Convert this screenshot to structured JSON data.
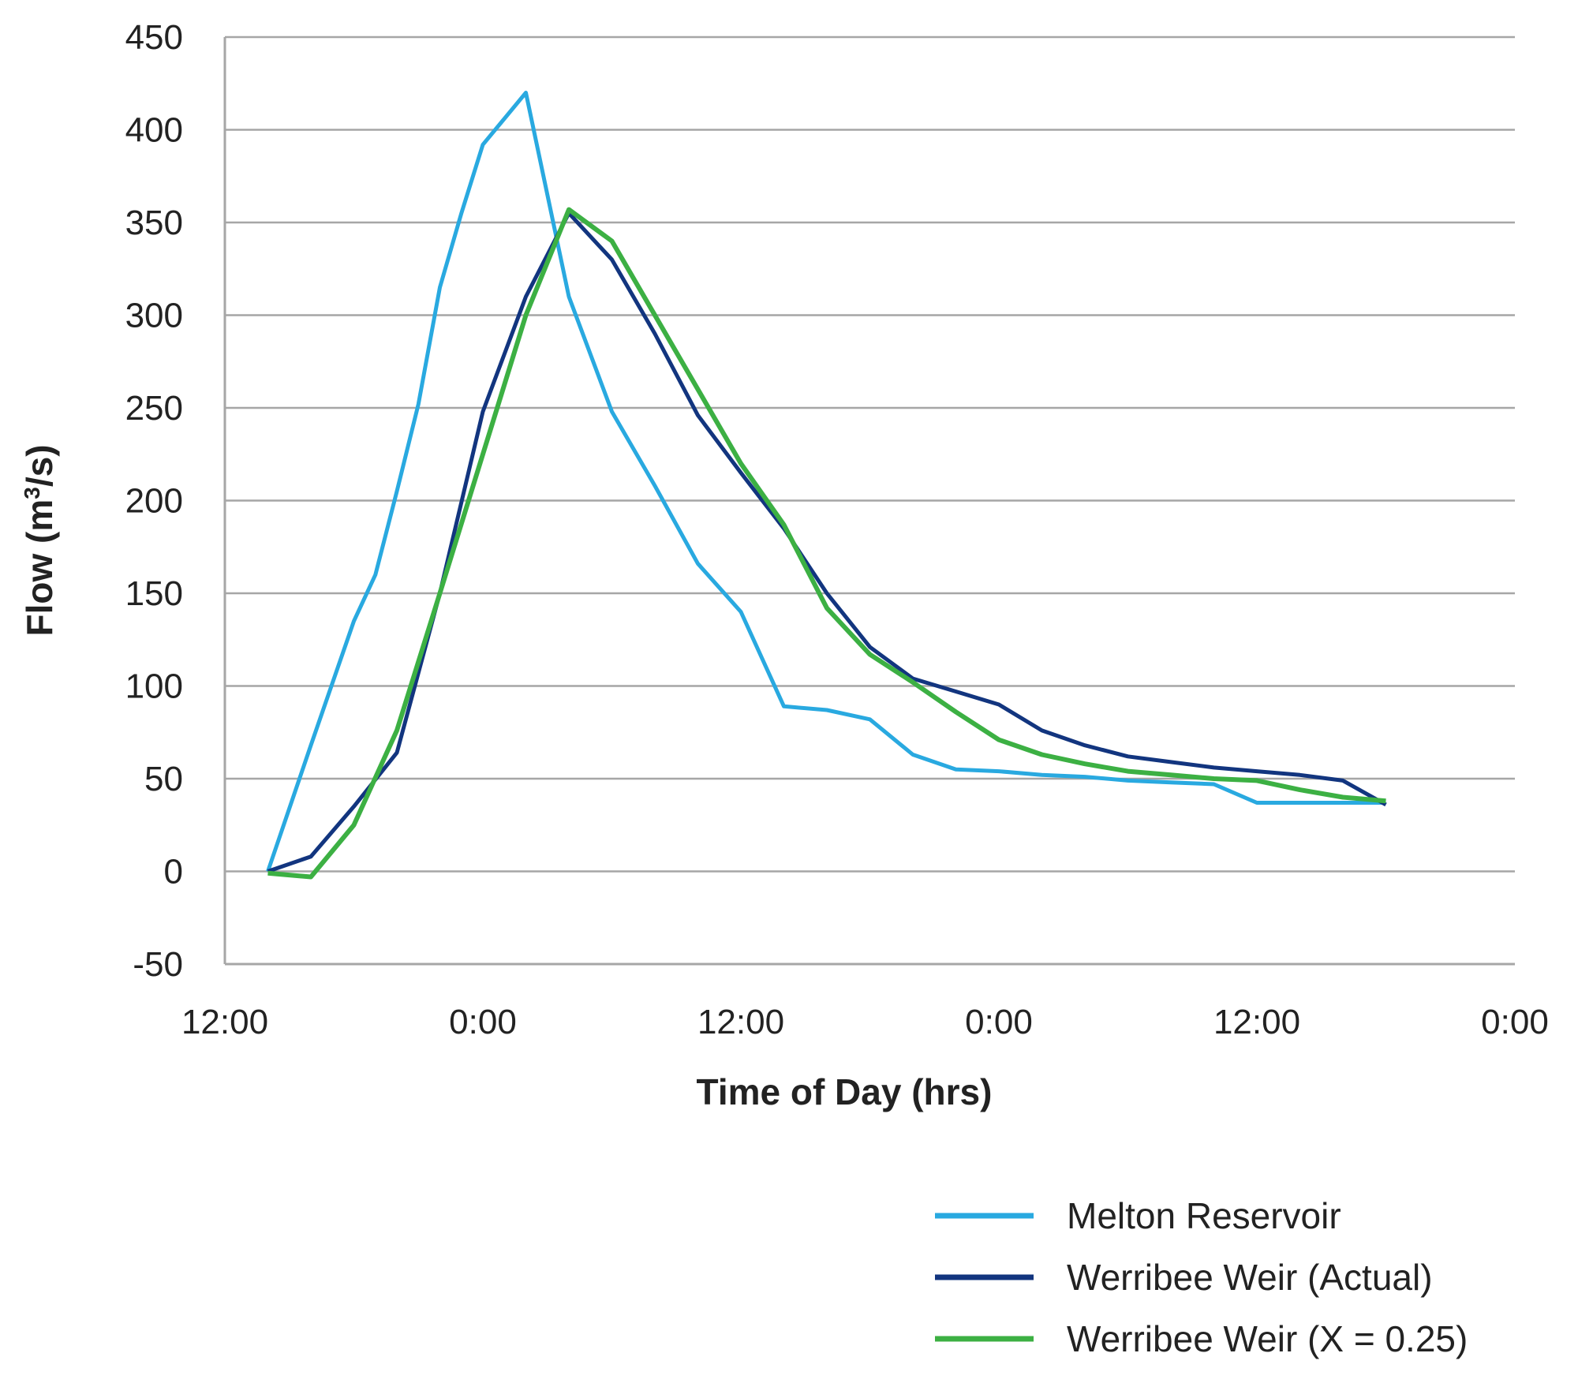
{
  "chart_data": {
    "type": "line",
    "title": "",
    "xlabel": "Time of Day (hrs)",
    "ylabel_main": "Flow (m",
    "ylabel_sup": "3",
    "ylabel_tail": "/s)",
    "ylabel": "Flow (m³/s)",
    "x_unit": "hours from first 12:00 tick",
    "xlim": [
      0,
      60
    ],
    "ylim": [
      -50,
      450
    ],
    "x_ticks": [
      {
        "x": 0,
        "label": "12:00"
      },
      {
        "x": 12,
        "label": "0:00"
      },
      {
        "x": 24,
        "label": "12:00"
      },
      {
        "x": 36,
        "label": "0:00"
      },
      {
        "x": 48,
        "label": "12:00"
      },
      {
        "x": 60,
        "label": "0:00"
      }
    ],
    "y_ticks": [
      -50,
      0,
      50,
      100,
      150,
      200,
      250,
      300,
      350,
      400,
      450
    ],
    "grid": "horizontal",
    "legend_position": "bottom-right",
    "series": [
      {
        "name": "Melton Reservoir",
        "color": "#29A9E0",
        "x": [
          2,
          4,
          6,
          7,
          8,
          9,
          10,
          11,
          12,
          14,
          16,
          18,
          20,
          22,
          24,
          26,
          28,
          30,
          32,
          34,
          36,
          38,
          40,
          42,
          44,
          46,
          48,
          50,
          52,
          54
        ],
        "y": [
          0,
          68,
          135,
          160,
          205,
          252,
          315,
          355,
          392,
          420,
          310,
          248,
          208,
          166,
          140,
          89,
          87,
          82,
          63,
          55,
          54,
          52,
          51,
          49,
          48,
          47,
          37,
          37,
          37,
          37
        ]
      },
      {
        "name": "Werribee Weir (Actual)",
        "color": "#12357F",
        "x": [
          2,
          4,
          6,
          8,
          10,
          12,
          14,
          16,
          18,
          20,
          22,
          24,
          26,
          28,
          30,
          32,
          34,
          36,
          38,
          40,
          42,
          44,
          46,
          48,
          50,
          52,
          54
        ],
        "y": [
          0,
          8,
          35,
          64,
          150,
          248,
          310,
          355,
          330,
          290,
          246,
          215,
          185,
          150,
          121,
          104,
          97,
          90,
          76,
          68,
          62,
          59,
          56,
          54,
          52,
          49,
          36
        ]
      },
      {
        "name": "Werribee Weir (X = 0.25)",
        "color": "#3CB043",
        "x": [
          2,
          4,
          6,
          8,
          10,
          12,
          14,
          16,
          18,
          20,
          22,
          24,
          26,
          28,
          30,
          32,
          34,
          36,
          38,
          40,
          42,
          44,
          46,
          48,
          50,
          52,
          54
        ],
        "y": [
          -1,
          -3,
          25,
          76,
          150,
          225,
          300,
          357,
          340,
          300,
          260,
          220,
          187,
          142,
          117,
          102,
          86,
          71,
          63,
          58,
          54,
          52,
          50,
          49,
          44,
          40,
          38
        ]
      }
    ]
  }
}
